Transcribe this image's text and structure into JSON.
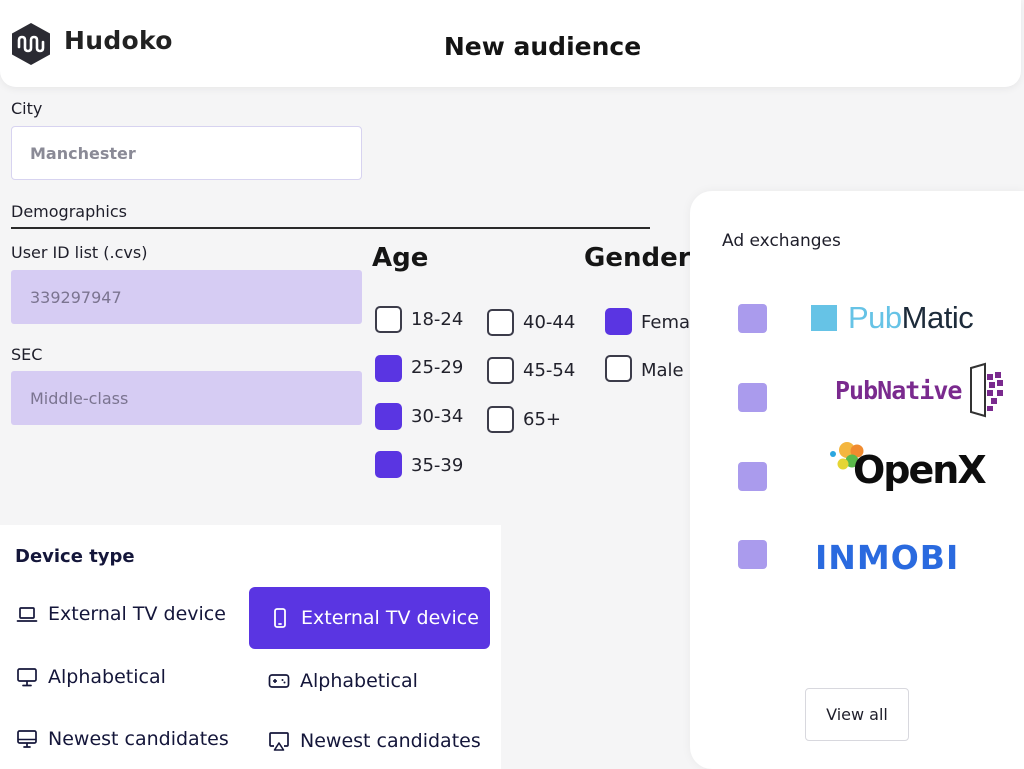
{
  "app": {
    "brand": "Hudoko",
    "page_title": "New audience"
  },
  "city": {
    "label": "City",
    "value": "Manchester"
  },
  "demographics": {
    "label": "Demographics",
    "user_id_list": {
      "label": "User ID list (.cvs)",
      "value": "339297947"
    },
    "sec": {
      "label": "SEC",
      "value": "Middle-class"
    }
  },
  "age": {
    "heading": "Age",
    "options": [
      {
        "label": "18-24",
        "checked": false
      },
      {
        "label": "25-29",
        "checked": true
      },
      {
        "label": "30-34",
        "checked": true
      },
      {
        "label": "35-39",
        "checked": true
      },
      {
        "label": "40-44",
        "checked": false
      },
      {
        "label": "45-54",
        "checked": false
      },
      {
        "label": "65+",
        "checked": false
      }
    ]
  },
  "gender": {
    "heading": "Gender",
    "options": [
      {
        "label": "Fema",
        "checked": true
      },
      {
        "label": "Male",
        "checked": false
      }
    ]
  },
  "device_type": {
    "title": "Device type",
    "items": [
      {
        "label": "External TV device",
        "icon": "laptop-icon",
        "selected": false
      },
      {
        "label": "External TV device",
        "icon": "smartphone-icon",
        "selected": true
      },
      {
        "label": "Alphabetical",
        "icon": "monitor-icon",
        "selected": false
      },
      {
        "label": "Alphabetical",
        "icon": "gamepad-icon",
        "selected": false
      },
      {
        "label": "Newest candidates",
        "icon": "desktop-icon",
        "selected": false
      },
      {
        "label": "Newest candidates",
        "icon": "airplay-icon",
        "selected": false
      }
    ]
  },
  "ad_exchanges": {
    "title": "Ad exchanges",
    "items": [
      {
        "logo_pre": "Pub",
        "logo_post": "Matic",
        "checked": true
      },
      {
        "logo_text": "PubNative",
        "checked": true
      },
      {
        "logo_text": "OpenX",
        "checked": true
      },
      {
        "logo_text": "INMOBI",
        "checked": true
      }
    ],
    "view_all": "View all"
  },
  "colors": {
    "accent": "#5a35e2",
    "accent_light": "#d6ccf3",
    "ad_checkbox": "#aa9bed",
    "pubmatic_blue": "#66c3e6",
    "pubmatic_dark": "#1d2b3a",
    "pubnative_purple": "#7a2a8e",
    "inmobi_blue": "#2a6adf"
  }
}
